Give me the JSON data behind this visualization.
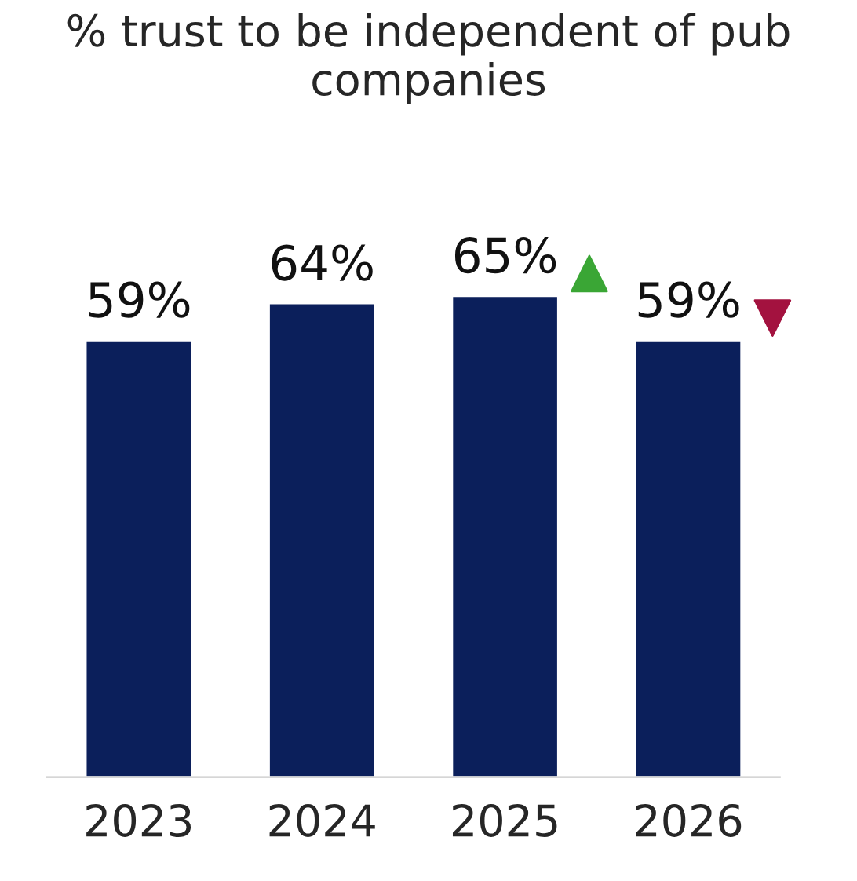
{
  "chart_data": {
    "type": "bar",
    "title": "% trust to be independent of pub companies",
    "categories": [
      "2023",
      "2024",
      "2025",
      "2026"
    ],
    "values": [
      59,
      64,
      65,
      59
    ],
    "value_labels": [
      "59%",
      "64%",
      "65%",
      "59%"
    ],
    "color": "#0b1f5b",
    "tick_labels": "x",
    "grid": false,
    "legend": false
  }
}
